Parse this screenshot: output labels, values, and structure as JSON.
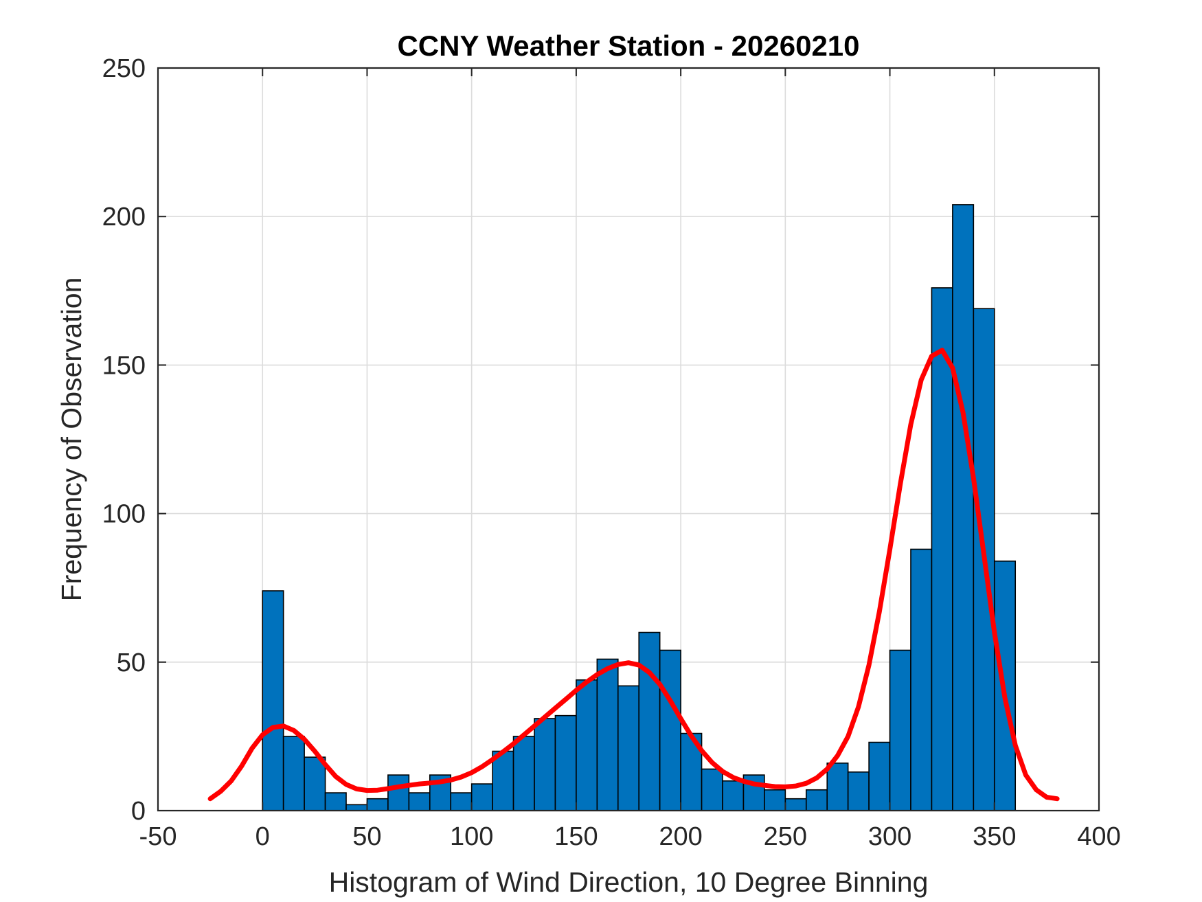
{
  "chart_data": {
    "type": "bar",
    "title": "CCNY Weather Station - 20260210",
    "xlabel": "Histogram of Wind Direction, 10 Degree Binning",
    "ylabel": "Frequency of Observation",
    "xlim": [
      -50,
      400
    ],
    "ylim": [
      0,
      250
    ],
    "xticks": [
      -50,
      0,
      50,
      100,
      150,
      200,
      250,
      300,
      350,
      400
    ],
    "yticks": [
      0,
      50,
      100,
      150,
      200,
      250
    ],
    "xtick_labels": [
      "-50",
      "0",
      "50",
      "100",
      "150",
      "200",
      "250",
      "300",
      "350",
      "400"
    ],
    "ytick_labels": [
      "0",
      "50",
      "100",
      "150",
      "200",
      "250"
    ],
    "grid": true,
    "bin_width": 10,
    "bin_edges_start": 0,
    "series": [
      {
        "name": "Wind Direction Histogram",
        "type": "bar",
        "color": "#0072BD",
        "values": [
          74,
          25,
          18,
          6,
          2,
          4,
          12,
          6,
          12,
          6,
          9,
          20,
          25,
          31,
          32,
          44,
          51,
          42,
          60,
          54,
          26,
          14,
          10,
          12,
          7,
          4,
          7,
          16,
          13,
          23,
          54,
          88,
          176,
          204,
          169,
          84
        ]
      },
      {
        "name": "Density Fit",
        "type": "line",
        "color": "#FF0000",
        "x": [
          -25,
          -20,
          -15,
          -10,
          -5,
          0,
          5,
          10,
          15,
          20,
          25,
          30,
          35,
          40,
          45,
          50,
          55,
          60,
          65,
          70,
          75,
          80,
          85,
          90,
          95,
          100,
          105,
          110,
          115,
          120,
          125,
          130,
          135,
          140,
          145,
          150,
          155,
          160,
          165,
          170,
          175,
          180,
          185,
          190,
          195,
          200,
          205,
          210,
          215,
          220,
          225,
          230,
          235,
          240,
          245,
          250,
          255,
          260,
          265,
          270,
          275,
          280,
          285,
          290,
          295,
          300,
          305,
          310,
          315,
          320,
          325,
          330,
          335,
          340,
          345,
          350,
          355,
          360,
          365,
          370,
          375,
          380
        ],
        "y": [
          4,
          6.5,
          10,
          15,
          21,
          25.5,
          28,
          28.5,
          27,
          24,
          20,
          15.5,
          11.5,
          8.8,
          7.3,
          6.8,
          6.9,
          7.4,
          8.0,
          8.5,
          9.0,
          9.3,
          9.7,
          10.3,
          11.3,
          12.8,
          14.8,
          17.2,
          19.8,
          22.5,
          25.5,
          28.5,
          31.5,
          34.5,
          37.5,
          40.5,
          43.3,
          45.8,
          47.8,
          49.2,
          49.8,
          49.0,
          46.5,
          42.5,
          37.0,
          31.0,
          25.2,
          20.2,
          16.2,
          13.2,
          11.2,
          9.9,
          9.0,
          8.5,
          8.1,
          8.0,
          8.3,
          9.2,
          11.0,
          14.0,
          18.5,
          25.0,
          35.0,
          49.0,
          67.0,
          88.0,
          110.0,
          130.0,
          145.0,
          153.0,
          155.0,
          149.0,
          134.0,
          112.0,
          86.0,
          60.0,
          38.0,
          22.0,
          12.0,
          7.0,
          4.5,
          4.0
        ]
      }
    ]
  }
}
